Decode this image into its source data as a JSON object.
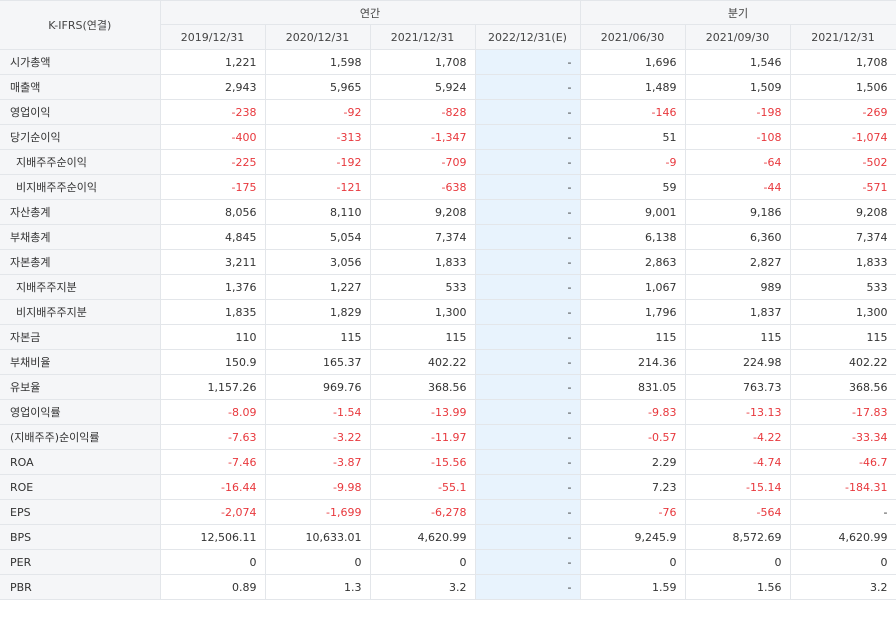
{
  "header": {
    "corner_label": "K-IFRS(연결)",
    "group_annual": "연간",
    "group_quarter": "분기",
    "columns": [
      "2019/12/31",
      "2020/12/31",
      "2021/12/31",
      "2022/12/31(E)",
      "2021/06/30",
      "2021/09/30",
      "2021/12/31"
    ]
  },
  "rows": [
    {
      "label": "시가총액",
      "sub": false,
      "values": [
        "1,221",
        "1,598",
        "1,708",
        "-",
        "1,696",
        "1,546",
        "1,708"
      ]
    },
    {
      "label": "매출액",
      "sub": false,
      "values": [
        "2,943",
        "5,965",
        "5,924",
        "-",
        "1,489",
        "1,509",
        "1,506"
      ]
    },
    {
      "label": "영업이익",
      "sub": false,
      "values": [
        "-238",
        "-92",
        "-828",
        "-",
        "-146",
        "-198",
        "-269"
      ]
    },
    {
      "label": "당기순이익",
      "sub": false,
      "values": [
        "-400",
        "-313",
        "-1,347",
        "-",
        "51",
        "-108",
        "-1,074"
      ]
    },
    {
      "label": "지배주주순이익",
      "sub": true,
      "values": [
        "-225",
        "-192",
        "-709",
        "-",
        "-9",
        "-64",
        "-502"
      ]
    },
    {
      "label": "비지배주주순이익",
      "sub": true,
      "values": [
        "-175",
        "-121",
        "-638",
        "-",
        "59",
        "-44",
        "-571"
      ]
    },
    {
      "label": "자산총계",
      "sub": false,
      "values": [
        "8,056",
        "8,110",
        "9,208",
        "-",
        "9,001",
        "9,186",
        "9,208"
      ]
    },
    {
      "label": "부채총계",
      "sub": false,
      "values": [
        "4,845",
        "5,054",
        "7,374",
        "-",
        "6,138",
        "6,360",
        "7,374"
      ]
    },
    {
      "label": "자본총계",
      "sub": false,
      "values": [
        "3,211",
        "3,056",
        "1,833",
        "-",
        "2,863",
        "2,827",
        "1,833"
      ]
    },
    {
      "label": "지배주주지분",
      "sub": true,
      "values": [
        "1,376",
        "1,227",
        "533",
        "-",
        "1,067",
        "989",
        "533"
      ]
    },
    {
      "label": "비지배주주지분",
      "sub": true,
      "values": [
        "1,835",
        "1,829",
        "1,300",
        "-",
        "1,796",
        "1,837",
        "1,300"
      ]
    },
    {
      "label": "자본금",
      "sub": false,
      "values": [
        "110",
        "115",
        "115",
        "-",
        "115",
        "115",
        "115"
      ]
    },
    {
      "label": "부채비율",
      "sub": false,
      "values": [
        "150.9",
        "165.37",
        "402.22",
        "-",
        "214.36",
        "224.98",
        "402.22"
      ]
    },
    {
      "label": "유보율",
      "sub": false,
      "values": [
        "1,157.26",
        "969.76",
        "368.56",
        "-",
        "831.05",
        "763.73",
        "368.56"
      ]
    },
    {
      "label": "영업이익률",
      "sub": false,
      "values": [
        "-8.09",
        "-1.54",
        "-13.99",
        "-",
        "-9.83",
        "-13.13",
        "-17.83"
      ]
    },
    {
      "label": "(지배주주)순이익률",
      "sub": false,
      "values": [
        "-7.63",
        "-3.22",
        "-11.97",
        "-",
        "-0.57",
        "-4.22",
        "-33.34"
      ]
    },
    {
      "label": "ROA",
      "sub": false,
      "values": [
        "-7.46",
        "-3.87",
        "-15.56",
        "-",
        "2.29",
        "-4.74",
        "-46.7"
      ]
    },
    {
      "label": "ROE",
      "sub": false,
      "values": [
        "-16.44",
        "-9.98",
        "-55.1",
        "-",
        "7.23",
        "-15.14",
        "-184.31"
      ]
    },
    {
      "label": "EPS",
      "sub": false,
      "values": [
        "-2,074",
        "-1,699",
        "-6,278",
        "-",
        "-76",
        "-564",
        "-"
      ]
    },
    {
      "label": "BPS",
      "sub": false,
      "values": [
        "12,506.11",
        "10,633.01",
        "4,620.99",
        "-",
        "9,245.9",
        "8,572.69",
        "4,620.99"
      ]
    },
    {
      "label": "PER",
      "sub": false,
      "values": [
        "0",
        "0",
        "0",
        "-",
        "0",
        "0",
        "0"
      ]
    },
    {
      "label": "PBR",
      "sub": false,
      "values": [
        "0.89",
        "1.3",
        "3.2",
        "-",
        "1.59",
        "1.56",
        "3.2"
      ]
    }
  ],
  "colors": {
    "negative": "#e8383d",
    "estimate_bg": "#e8f3fd",
    "header_bg": "#f5f6f8"
  }
}
